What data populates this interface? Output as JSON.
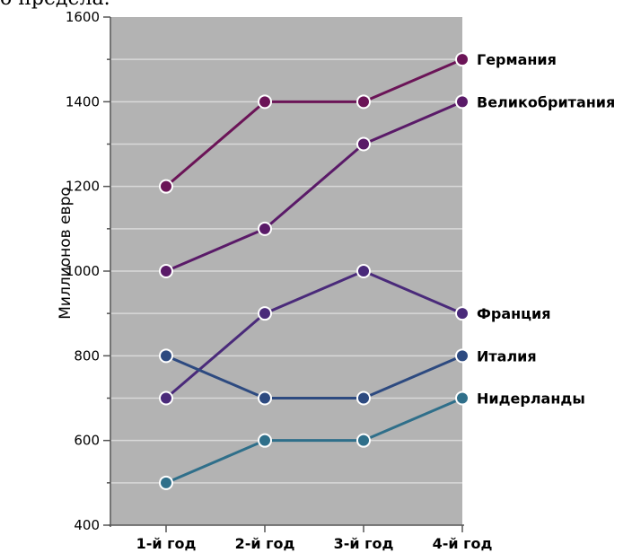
{
  "fragment_text": "о предела.",
  "chart_data": {
    "type": "line",
    "categories": [
      "1-й год",
      "2-й год",
      "3-й год",
      "4-й год"
    ],
    "ylabel": "Миллионов евро",
    "ylim": [
      400,
      1600
    ],
    "yticks": [
      400,
      600,
      800,
      1000,
      1200,
      1400,
      1600
    ],
    "grid": true,
    "plot_background": "#b3b3b3",
    "series": [
      {
        "name": "Германия",
        "values": [
          1200,
          1400,
          1400,
          1500
        ],
        "color": "#6b1457"
      },
      {
        "name": "Великобритания",
        "values": [
          1000,
          1100,
          1300,
          1400
        ],
        "color": "#5a1a68"
      },
      {
        "name": "Франция",
        "values": [
          700,
          900,
          1000,
          900
        ],
        "color": "#4a2a7a"
      },
      {
        "name": "Италия",
        "values": [
          800,
          700,
          700,
          800
        ],
        "color": "#2d4a80"
      },
      {
        "name": "Нидерланды",
        "values": [
          500,
          600,
          600,
          700
        ],
        "color": "#2f6f8a"
      }
    ]
  }
}
